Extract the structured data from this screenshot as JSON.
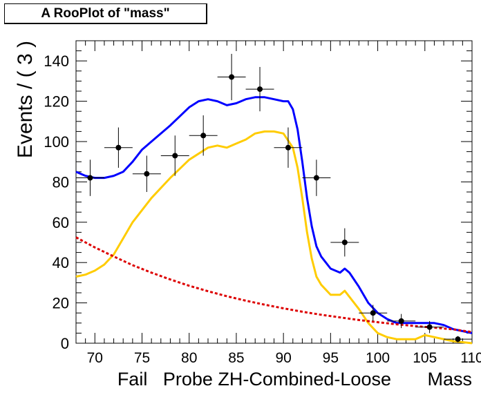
{
  "title_box": {
    "text": "A RooPlot of \"mass\""
  },
  "chart_data": {
    "type": "scatter",
    "ylabel": "Events / ( 3 )",
    "xlabel": "Fail   Probe ZH-Combined-Loose       Mass",
    "xlim": [
      68,
      110
    ],
    "ylim": [
      0,
      150
    ],
    "x_ticks": [
      70,
      75,
      80,
      85,
      90,
      95,
      100,
      105,
      110
    ],
    "y_ticks": [
      0,
      20,
      40,
      60,
      80,
      100,
      120,
      140
    ],
    "grid": false,
    "data_points": {
      "x": [
        69.5,
        72.5,
        75.5,
        78.5,
        81.5,
        84.5,
        87.5,
        90.5,
        93.5,
        96.5,
        99.5,
        102.5,
        105.5,
        108.5
      ],
      "y": [
        82,
        97,
        84,
        93,
        103,
        132,
        126,
        97,
        82,
        50,
        15,
        11,
        8,
        2
      ],
      "xerr": 1.5,
      "yerr": [
        9,
        10,
        9,
        10,
        10,
        11.5,
        11,
        10,
        9,
        7,
        4,
        3.5,
        3,
        1.5
      ]
    },
    "series": [
      {
        "color": "#0000ff",
        "x": [
          68,
          69,
          70,
          71,
          72,
          73,
          74,
          75,
          76,
          78,
          80,
          81,
          82,
          83,
          84,
          85,
          86,
          87,
          88,
          89,
          90,
          90.5,
          91,
          91.5,
          92,
          92.5,
          93,
          93.5,
          94,
          95,
          96,
          96.5,
          97,
          98,
          99,
          100,
          101,
          102,
          103,
          104,
          105,
          106,
          107,
          108,
          109,
          110
        ],
        "y": [
          85,
          83,
          82,
          82,
          83,
          85,
          90,
          96,
          100,
          108,
          117,
          120,
          121,
          120,
          118,
          119,
          121,
          122,
          122,
          121,
          120,
          120,
          116,
          106,
          90,
          72,
          58,
          48,
          43,
          37,
          35,
          37,
          35,
          28,
          20,
          15,
          12,
          10,
          10,
          10,
          10,
          10,
          9,
          7,
          6,
          5
        ]
      },
      {
        "color": "#ffcc00",
        "x": [
          68,
          69,
          70,
          71,
          72,
          73,
          74,
          75,
          76,
          78,
          80,
          82,
          83,
          84,
          85,
          86,
          87,
          88,
          89,
          90,
          91,
          91.5,
          92,
          92.5,
          93,
          93.5,
          94,
          95,
          96,
          96.5,
          97,
          98,
          99,
          100,
          101,
          102,
          103,
          104,
          105,
          106,
          107,
          108,
          109,
          110
        ],
        "y": [
          33,
          34,
          36,
          39,
          44,
          52,
          60,
          66,
          72,
          82,
          91,
          97,
          98,
          97,
          99,
          101,
          104,
          105,
          105,
          104,
          97,
          87,
          72,
          55,
          42,
          33,
          29,
          24,
          24,
          26,
          23,
          17,
          10,
          5,
          3,
          2,
          2,
          2,
          4,
          3,
          2,
          1,
          0.5,
          0
        ]
      },
      {
        "color": "#dd0000",
        "dashed": true,
        "x": [
          68,
          70,
          72,
          74,
          76,
          78,
          80,
          82,
          84,
          86,
          88,
          90,
          92,
          94,
          96,
          98,
          100,
          102,
          104,
          106,
          108,
          110
        ],
        "y": [
          52.5,
          47.5,
          43,
          38.7,
          35,
          31.6,
          28.5,
          25.8,
          23.3,
          21.1,
          19.1,
          17.3,
          15.6,
          14.1,
          12.8,
          11.5,
          10.4,
          9.4,
          8.5,
          7.7,
          6.9,
          5.5
        ]
      }
    ]
  }
}
